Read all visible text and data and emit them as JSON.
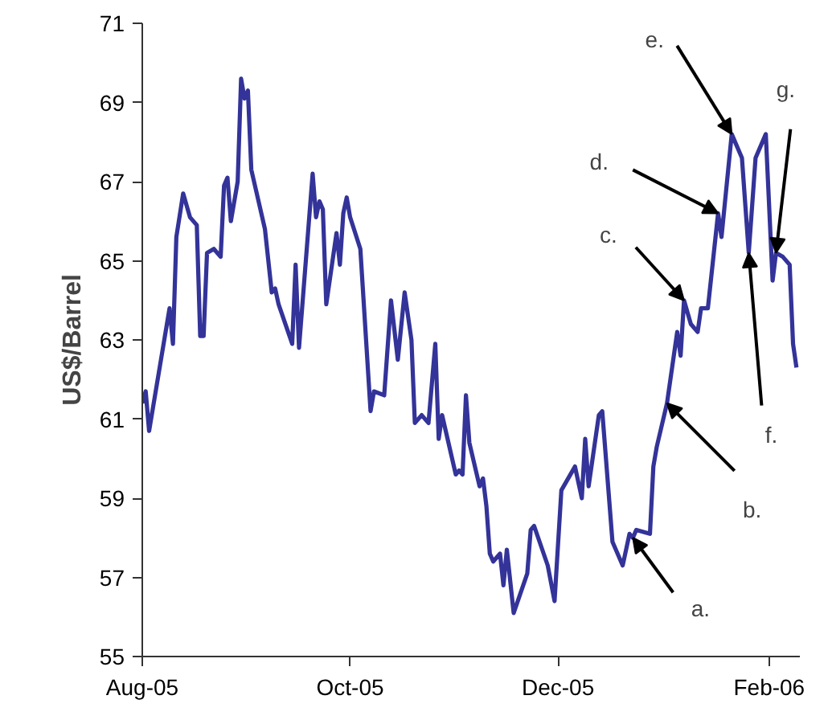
{
  "chart_data": {
    "type": "line",
    "ylabel": "US$/Barrel",
    "x": [
      "2005-08-01",
      "2005-08-02",
      "2005-08-03",
      "2005-08-09",
      "2005-08-10",
      "2005-08-11",
      "2005-08-13",
      "2005-08-15",
      "2005-08-17",
      "2005-08-18",
      "2005-08-19",
      "2005-08-20",
      "2005-08-22",
      "2005-08-24",
      "2005-08-25",
      "2005-08-26",
      "2005-08-27",
      "2005-08-29",
      "2005-08-30",
      "2005-08-31",
      "2005-09-01",
      "2005-09-02",
      "2005-09-06",
      "2005-09-08",
      "2005-09-09",
      "2005-09-10",
      "2005-09-14",
      "2005-09-15",
      "2005-09-16",
      "2005-09-20",
      "2005-09-21",
      "2005-09-22",
      "2005-09-23",
      "2005-09-24",
      "2005-09-27",
      "2005-09-28",
      "2005-09-29",
      "2005-09-30",
      "2005-10-01",
      "2005-10-04",
      "2005-10-07",
      "2005-10-08",
      "2005-10-11",
      "2005-10-13",
      "2005-10-15",
      "2005-10-17",
      "2005-10-19",
      "2005-10-20",
      "2005-10-22",
      "2005-10-24",
      "2005-10-26",
      "2005-10-27",
      "2005-10-28",
      "2005-11-01",
      "2005-11-02",
      "2005-11-03",
      "2005-11-04",
      "2005-11-05",
      "2005-11-08",
      "2005-11-09",
      "2005-11-10",
      "2005-11-11",
      "2005-11-12",
      "2005-11-14",
      "2005-11-15",
      "2005-11-16",
      "2005-11-18",
      "2005-11-22",
      "2005-11-23",
      "2005-11-24",
      "2005-11-28",
      "2005-11-30",
      "2005-12-02",
      "2005-12-06",
      "2005-12-08",
      "2005-12-09",
      "2005-12-10",
      "2005-12-13",
      "2005-12-14",
      "2005-12-17",
      "2005-12-20",
      "2005-12-22",
      "2005-12-23",
      "2005-12-24",
      "2005-12-28",
      "2005-12-29",
      "2005-12-30",
      "2006-01-02",
      "2006-01-05",
      "2006-01-06",
      "2006-01-07",
      "2006-01-09",
      "2006-01-11",
      "2006-01-12",
      "2006-01-14",
      "2006-01-17",
      "2006-01-18",
      "2006-01-21",
      "2006-01-24",
      "2006-01-26",
      "2006-01-28",
      "2006-01-31",
      "2006-02-02",
      "2006-02-03",
      "2006-02-05",
      "2006-02-07",
      "2006-02-08",
      "2006-02-09"
    ],
    "series": [
      {
        "color": "#333399",
        "values": [
          61.4,
          61.7,
          60.7,
          63.8,
          62.9,
          65.6,
          66.7,
          66.1,
          65.9,
          63.1,
          63.1,
          65.2,
          65.3,
          65.1,
          66.9,
          67.1,
          66.0,
          67.0,
          69.6,
          69.1,
          69.3,
          67.3,
          65.8,
          64.2,
          64.3,
          63.9,
          62.9,
          64.9,
          62.8,
          67.2,
          66.1,
          66.5,
          66.3,
          63.9,
          65.7,
          64.9,
          66.2,
          66.6,
          66.1,
          65.3,
          61.2,
          61.7,
          61.6,
          64.0,
          62.5,
          64.2,
          63.0,
          60.9,
          61.1,
          60.9,
          62.9,
          60.5,
          61.1,
          59.6,
          59.7,
          59.6,
          61.6,
          60.4,
          59.3,
          59.5,
          58.8,
          57.6,
          57.4,
          57.6,
          56.8,
          57.7,
          56.1,
          57.1,
          58.2,
          58.3,
          57.3,
          56.4,
          59.2,
          59.8,
          59.0,
          60.5,
          59.3,
          61.1,
          61.2,
          57.9,
          57.3,
          58.1,
          58.0,
          58.2,
          58.1,
          59.8,
          60.3,
          61.4,
          63.2,
          62.6,
          64.0,
          63.4,
          63.2,
          63.8,
          63.8,
          66.2,
          65.6,
          68.2,
          67.6,
          65.2,
          67.6,
          68.2,
          64.5,
          65.2,
          65.1,
          64.9,
          62.9,
          62.3
        ]
      }
    ],
    "xlim": [
      "2005-08-01",
      "2006-02-10"
    ],
    "xticks": [
      {
        "value": "2005-08-01",
        "label": "Aug-05"
      },
      {
        "value": "2005-10-01",
        "label": "Oct-05"
      },
      {
        "value": "2005-12-01",
        "label": "Dec-05"
      },
      {
        "value": "2006-02-01",
        "label": "Feb-06"
      }
    ],
    "ylim": [
      55,
      71
    ],
    "yticks": [
      55,
      57,
      59,
      61,
      63,
      65,
      67,
      69,
      71
    ],
    "annotations": [
      {
        "text": "a.",
        "x": "2005-12-23",
        "y": 58.0
      },
      {
        "text": "b.",
        "x": "2006-01-02",
        "y": 61.4
      },
      {
        "text": "c.",
        "x": "2006-01-07",
        "y": 64.0
      },
      {
        "text": "d.",
        "x": "2006-01-17",
        "y": 66.2
      },
      {
        "text": "e.",
        "x": "2006-01-21",
        "y": 68.2
      },
      {
        "text": "f.",
        "x": "2006-01-26",
        "y": 65.2
      },
      {
        "text": "g.",
        "x": "2006-02-03",
        "y": 65.2
      }
    ],
    "grid": false,
    "marker": "none",
    "line_style": "solid"
  }
}
